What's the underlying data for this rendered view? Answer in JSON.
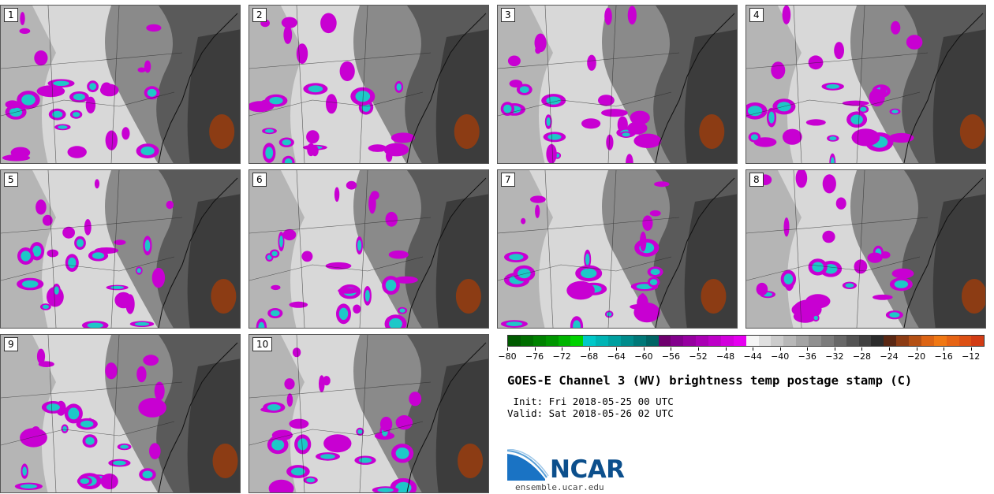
{
  "panels": [
    {
      "label": "1"
    },
    {
      "label": "2"
    },
    {
      "label": "3"
    },
    {
      "label": "4"
    },
    {
      "label": "5"
    },
    {
      "label": "6"
    },
    {
      "label": "7"
    },
    {
      "label": "8"
    },
    {
      "label": "9"
    },
    {
      "label": "10"
    }
  ],
  "colorbar": {
    "ticks": [
      "−80",
      "−76",
      "−72",
      "−68",
      "−64",
      "−60",
      "−56",
      "−52",
      "−48",
      "−44",
      "−40",
      "−36",
      "−32",
      "−28",
      "−24",
      "−20",
      "−16",
      "−12"
    ],
    "colors": [
      "#005a00",
      "#006e00",
      "#008200",
      "#009600",
      "#00b400",
      "#00d200",
      "#00c8c8",
      "#00b4b4",
      "#00a0a0",
      "#008c8c",
      "#007878",
      "#006464",
      "#6e006e",
      "#82008c",
      "#9600a0",
      "#aa00b4",
      "#be00c8",
      "#d200dc",
      "#e600f0",
      "#f5f5f5",
      "#e0e0e0",
      "#cccccc",
      "#b8b8b8",
      "#a4a4a4",
      "#909090",
      "#7c7c7c",
      "#686868",
      "#545454",
      "#404040",
      "#2c2c2c",
      "#5a2814",
      "#8c3c14",
      "#b45014",
      "#dc6414",
      "#f07814",
      "#e66414",
      "#dc5014",
      "#d23c14"
    ]
  },
  "title": "GOES-E Channel 3 (WV) brightness temp postage stamp (C)",
  "init_line": " Init: Fri 2018-05-25 00 UTC",
  "valid_line": "Valid: Sat 2018-05-26 02 UTC",
  "logo": {
    "text": "NCAR",
    "icon": "ncar-logo-icon",
    "url": "ensemble.ucar.edu"
  }
}
